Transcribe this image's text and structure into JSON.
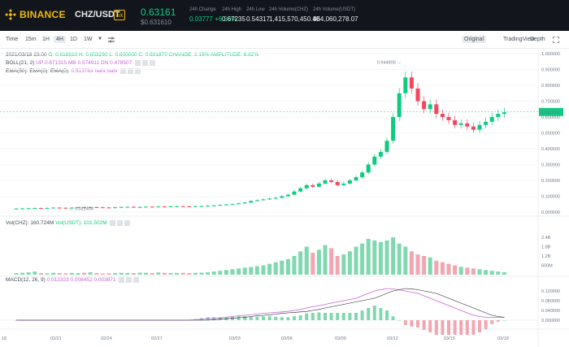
{
  "brand": {
    "name": "BINANCE"
  },
  "market": {
    "pair": "CHZ/USDT",
    "leverage": "5x",
    "last_price": "0.63161",
    "last_price_usd": "$0.631610",
    "stats": [
      {
        "label": "24h Change",
        "value": "0.03777 +6.36%",
        "color": "green"
      },
      {
        "label": "24h High",
        "value": "0.67235"
      },
      {
        "label": "24h Low",
        "value": "0.54317"
      },
      {
        "label": "24h Volume(CHZ)",
        "value": "1,415,570,450.40"
      },
      {
        "label": "24h Volume(USDT)",
        "value": "864,060,278.07"
      }
    ]
  },
  "toolbar": {
    "intervals": [
      "Time",
      "15m",
      "1H",
      "4H",
      "1D",
      "1W"
    ],
    "active_interval": "4H",
    "views": [
      "Original",
      "TradingView",
      "Depth"
    ],
    "active_view": "Original",
    "dropdown_icon": "chevron-down-icon",
    "settings_icon": "sliders-icon",
    "fullscreen_icon": "expand-icon"
  },
  "legend": {
    "ohlc_prefix": "2021/03/18 23:00",
    "ohlc_o": "O: 0.618310",
    "ohlc_h": "H: 0.653290",
    "ohlc_l": "L: 0.600000",
    "ohlc_c": "C: 0.631870",
    "ohlc_change": "CHANGE: 2.19%",
    "ohlc_amp": "AMPLITUDE: 8.62%",
    "boll_label": "BOLL(21, 2)",
    "boll_up": "UP 0.671315",
    "boll_mb": "MB 0.574911",
    "boll_dn": "DN 0.478507",
    "ema_label": "EMA(50): EMA(0): EMA(0):",
    "ema_vals": "0.513763 NaN NaN",
    "vol_label": "Vol(CHZ): 160.724M",
    "vol_usdt": "Vol(USDT): 101.502M",
    "macd_label": "MACD(12, 26, 9)",
    "macd_vals": "0.012323 0.008452 0.003871"
  },
  "annotations": {
    "high": "0.944900",
    "low": "0.022404",
    "current_price_tag": "0.631870"
  },
  "colors": {
    "up": "#0ecb81",
    "down": "#f6465d",
    "header_bg": "#12161c",
    "accent": "#f0b90b",
    "boll_up": "#c665d6",
    "boll_mb": "#c665d6",
    "boll_dn": "#6fb6e6",
    "ema": "#c665d6"
  },
  "chart_data": {
    "type": "candlestick",
    "x_ticks": [
      "18",
      "02/21",
      "02/24",
      "02/27",
      "03/03",
      "03/06",
      "03/09",
      "03/12",
      "03/15",
      "03/18"
    ],
    "price_ticks": [
      "1.000000",
      "0.900000",
      "0.800000",
      "0.700000",
      "0.600000",
      "0.500000",
      "0.400000",
      "0.300000",
      "0.200000",
      "0.100000",
      "0.000000"
    ],
    "price_range": [
      0,
      1.0
    ],
    "volume_ticks": [
      "2.4B",
      "1.8B",
      "1.2B",
      "600M"
    ],
    "macd_ticks": [
      "0.120000",
      "0.080000",
      "0.040000",
      "0.000000"
    ],
    "close_series": [
      0.022,
      0.023,
      0.024,
      0.025,
      0.024,
      0.026,
      0.028,
      0.027,
      0.026,
      0.028,
      0.03,
      0.029,
      0.031,
      0.03,
      0.029,
      0.028,
      0.03,
      0.032,
      0.033,
      0.031,
      0.032,
      0.034,
      0.033,
      0.035,
      0.034,
      0.036,
      0.037,
      0.036,
      0.035,
      0.037,
      0.038,
      0.04,
      0.042,
      0.045,
      0.048,
      0.05,
      0.055,
      0.06,
      0.07,
      0.075,
      0.08,
      0.085,
      0.09,
      0.1,
      0.11,
      0.13,
      0.15,
      0.17,
      0.16,
      0.18,
      0.2,
      0.19,
      0.17,
      0.18,
      0.2,
      0.22,
      0.25,
      0.3,
      0.35,
      0.38,
      0.45,
      0.6,
      0.75,
      0.85,
      0.78,
      0.7,
      0.65,
      0.68,
      0.62,
      0.6,
      0.58,
      0.55,
      0.56,
      0.54,
      0.52,
      0.55,
      0.57,
      0.6,
      0.62,
      0.63
    ],
    "volume": [
      0.1,
      0.12,
      0.15,
      0.2,
      0.1,
      0.08,
      0.12,
      0.1,
      0.09,
      0.11,
      0.1,
      0.12,
      0.15,
      0.1,
      0.08,
      0.09,
      0.1,
      0.12,
      0.11,
      0.1,
      0.13,
      0.12,
      0.1,
      0.14,
      0.12,
      0.1,
      0.11,
      0.12,
      0.1,
      0.12,
      0.13,
      0.15,
      0.2,
      0.25,
      0.3,
      0.35,
      0.4,
      0.45,
      0.5,
      0.55,
      0.6,
      0.7,
      0.8,
      0.9,
      1.0,
      1.2,
      1.5,
      1.8,
      1.4,
      1.6,
      1.9,
      1.7,
      1.2,
      1.3,
      1.5,
      1.8,
      2.0,
      2.3,
      2.2,
      2.1,
      2.2,
      2.4,
      2.0,
      1.8,
      1.5,
      1.3,
      1.2,
      1.1,
      0.9,
      0.8,
      0.7,
      0.6,
      0.5,
      0.45,
      0.4,
      0.35,
      0.3,
      0.25,
      0.2,
      0.16
    ],
    "macd": [
      0,
      0,
      0,
      0,
      0,
      0,
      0,
      0,
      0,
      0,
      0,
      0,
      0,
      0,
      0,
      0,
      0,
      0,
      0,
      0,
      0,
      0,
      0,
      0,
      0,
      0,
      0,
      0,
      0,
      0.002,
      0.004,
      0.006,
      0.008,
      0.01,
      0.012,
      0.015,
      0.018,
      0.02,
      0.022,
      0.025,
      0.028,
      0.03,
      0.032,
      0.034,
      0.036,
      0.04,
      0.044,
      0.05,
      0.055,
      0.06,
      0.065,
      0.07,
      0.075,
      0.08,
      0.085,
      0.09,
      0.1,
      0.11,
      0.12,
      0.125,
      0.13,
      0.128,
      0.125,
      0.12,
      0.115,
      0.11,
      0.1,
      0.09,
      0.08,
      0.07,
      0.06,
      0.05,
      0.04,
      0.03,
      0.02,
      0.015,
      0.012,
      0.012,
      0.012,
      0.012
    ]
  }
}
